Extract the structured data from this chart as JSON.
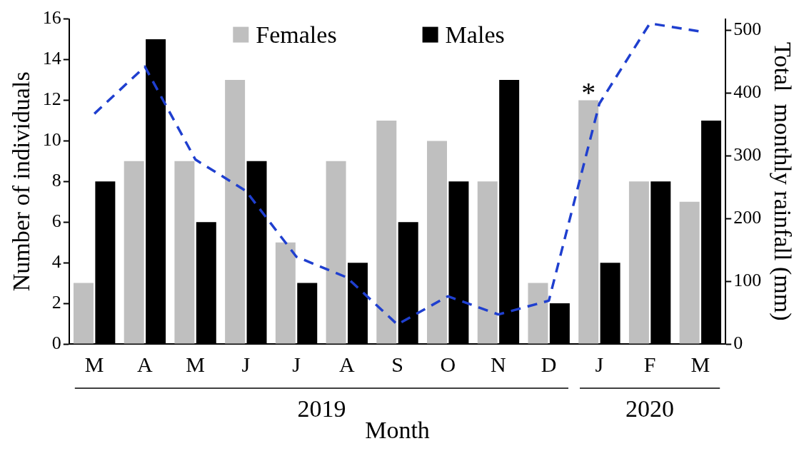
{
  "chart_data": {
    "type": "bar",
    "categories": [
      "M",
      "A",
      "M",
      "J",
      "J",
      "A",
      "S",
      "O",
      "N",
      "D",
      "J",
      "F",
      "M"
    ],
    "series": [
      {
        "name": "Females",
        "color": "#bfbfbf",
        "values": [
          3,
          9,
          9,
          13,
          5,
          9,
          11,
          10,
          8,
          3,
          12,
          8,
          7
        ]
      },
      {
        "name": "Males",
        "color": "#000000",
        "values": [
          8,
          15,
          6,
          9,
          3,
          4,
          6,
          8,
          13,
          2,
          4,
          8,
          11
        ]
      },
      {
        "type": "line",
        "axis": "y2",
        "color": "#1f3fcf",
        "line_style": "dashed",
        "marker": "none",
        "values": [
          367,
          442,
          294,
          244,
          139,
          106,
          31,
          76,
          47,
          69,
          383,
          511,
          498
        ]
      }
    ],
    "ylim": [
      0,
      16
    ],
    "yticks": [
      0,
      2,
      4,
      6,
      8,
      10,
      12,
      14,
      16
    ],
    "y2lim": [
      0,
      518
    ],
    "y2ticks": [
      0,
      100,
      200,
      300,
      400,
      500
    ],
    "xlabel": "Month",
    "ylabel": "Number of individuals",
    "y2label": "Total  monthly rainfall (mm)",
    "annotations": [
      "2019",
      "2020",
      "*"
    ],
    "legend": "top",
    "grid": false
  }
}
